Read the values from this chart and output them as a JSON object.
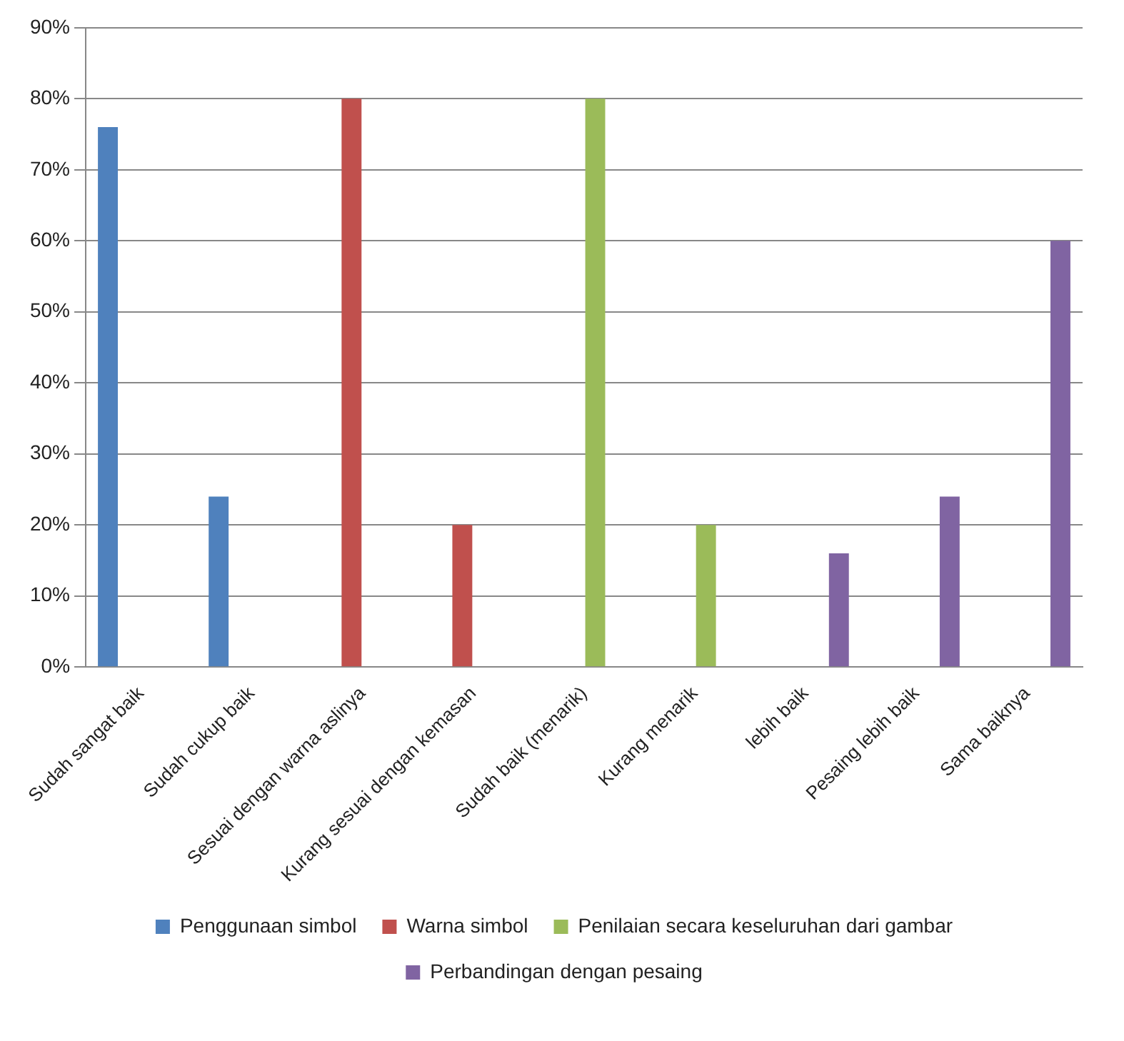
{
  "chart_data": {
    "type": "bar",
    "categories": [
      "Sudah sangat baik",
      "Sudah cukup baik",
      "Sesuai dengan warna aslinya",
      "Kurang sesuai dengan kemasan",
      "Sudah baik (menarik)",
      "Kurang menarik",
      "lebih baik",
      "Pesaing lebih baik",
      "Sama baiknya"
    ],
    "series": [
      {
        "name": "Penggunaan simbol",
        "color": "#4f81bd",
        "values": [
          76,
          24,
          null,
          null,
          null,
          null,
          null,
          null,
          null
        ]
      },
      {
        "name": "Warna simbol",
        "color": "#c0504d",
        "values": [
          null,
          null,
          80,
          20,
          null,
          null,
          null,
          null,
          null
        ]
      },
      {
        "name": "Penilaian secara keseluruhan dari gambar",
        "color": "#9bbb59",
        "values": [
          null,
          null,
          null,
          null,
          80,
          20,
          null,
          null,
          null
        ]
      },
      {
        "name": "Perbandingan dengan pesaing",
        "color": "#8064a2",
        "values": [
          null,
          null,
          null,
          null,
          null,
          null,
          16,
          24,
          60
        ]
      }
    ],
    "ylim": [
      0,
      90
    ],
    "yticks": [
      {
        "value": 0,
        "label": "0%"
      },
      {
        "value": 10,
        "label": "10%"
      },
      {
        "value": 20,
        "label": "20%"
      },
      {
        "value": 30,
        "label": "30%"
      },
      {
        "value": 40,
        "label": "40%"
      },
      {
        "value": 50,
        "label": "50%"
      },
      {
        "value": 60,
        "label": "60%"
      },
      {
        "value": 70,
        "label": "70%"
      },
      {
        "value": 80,
        "label": "80%"
      },
      {
        "value": 90,
        "label": "90%"
      }
    ],
    "grid": "y",
    "legend": "bottom"
  }
}
